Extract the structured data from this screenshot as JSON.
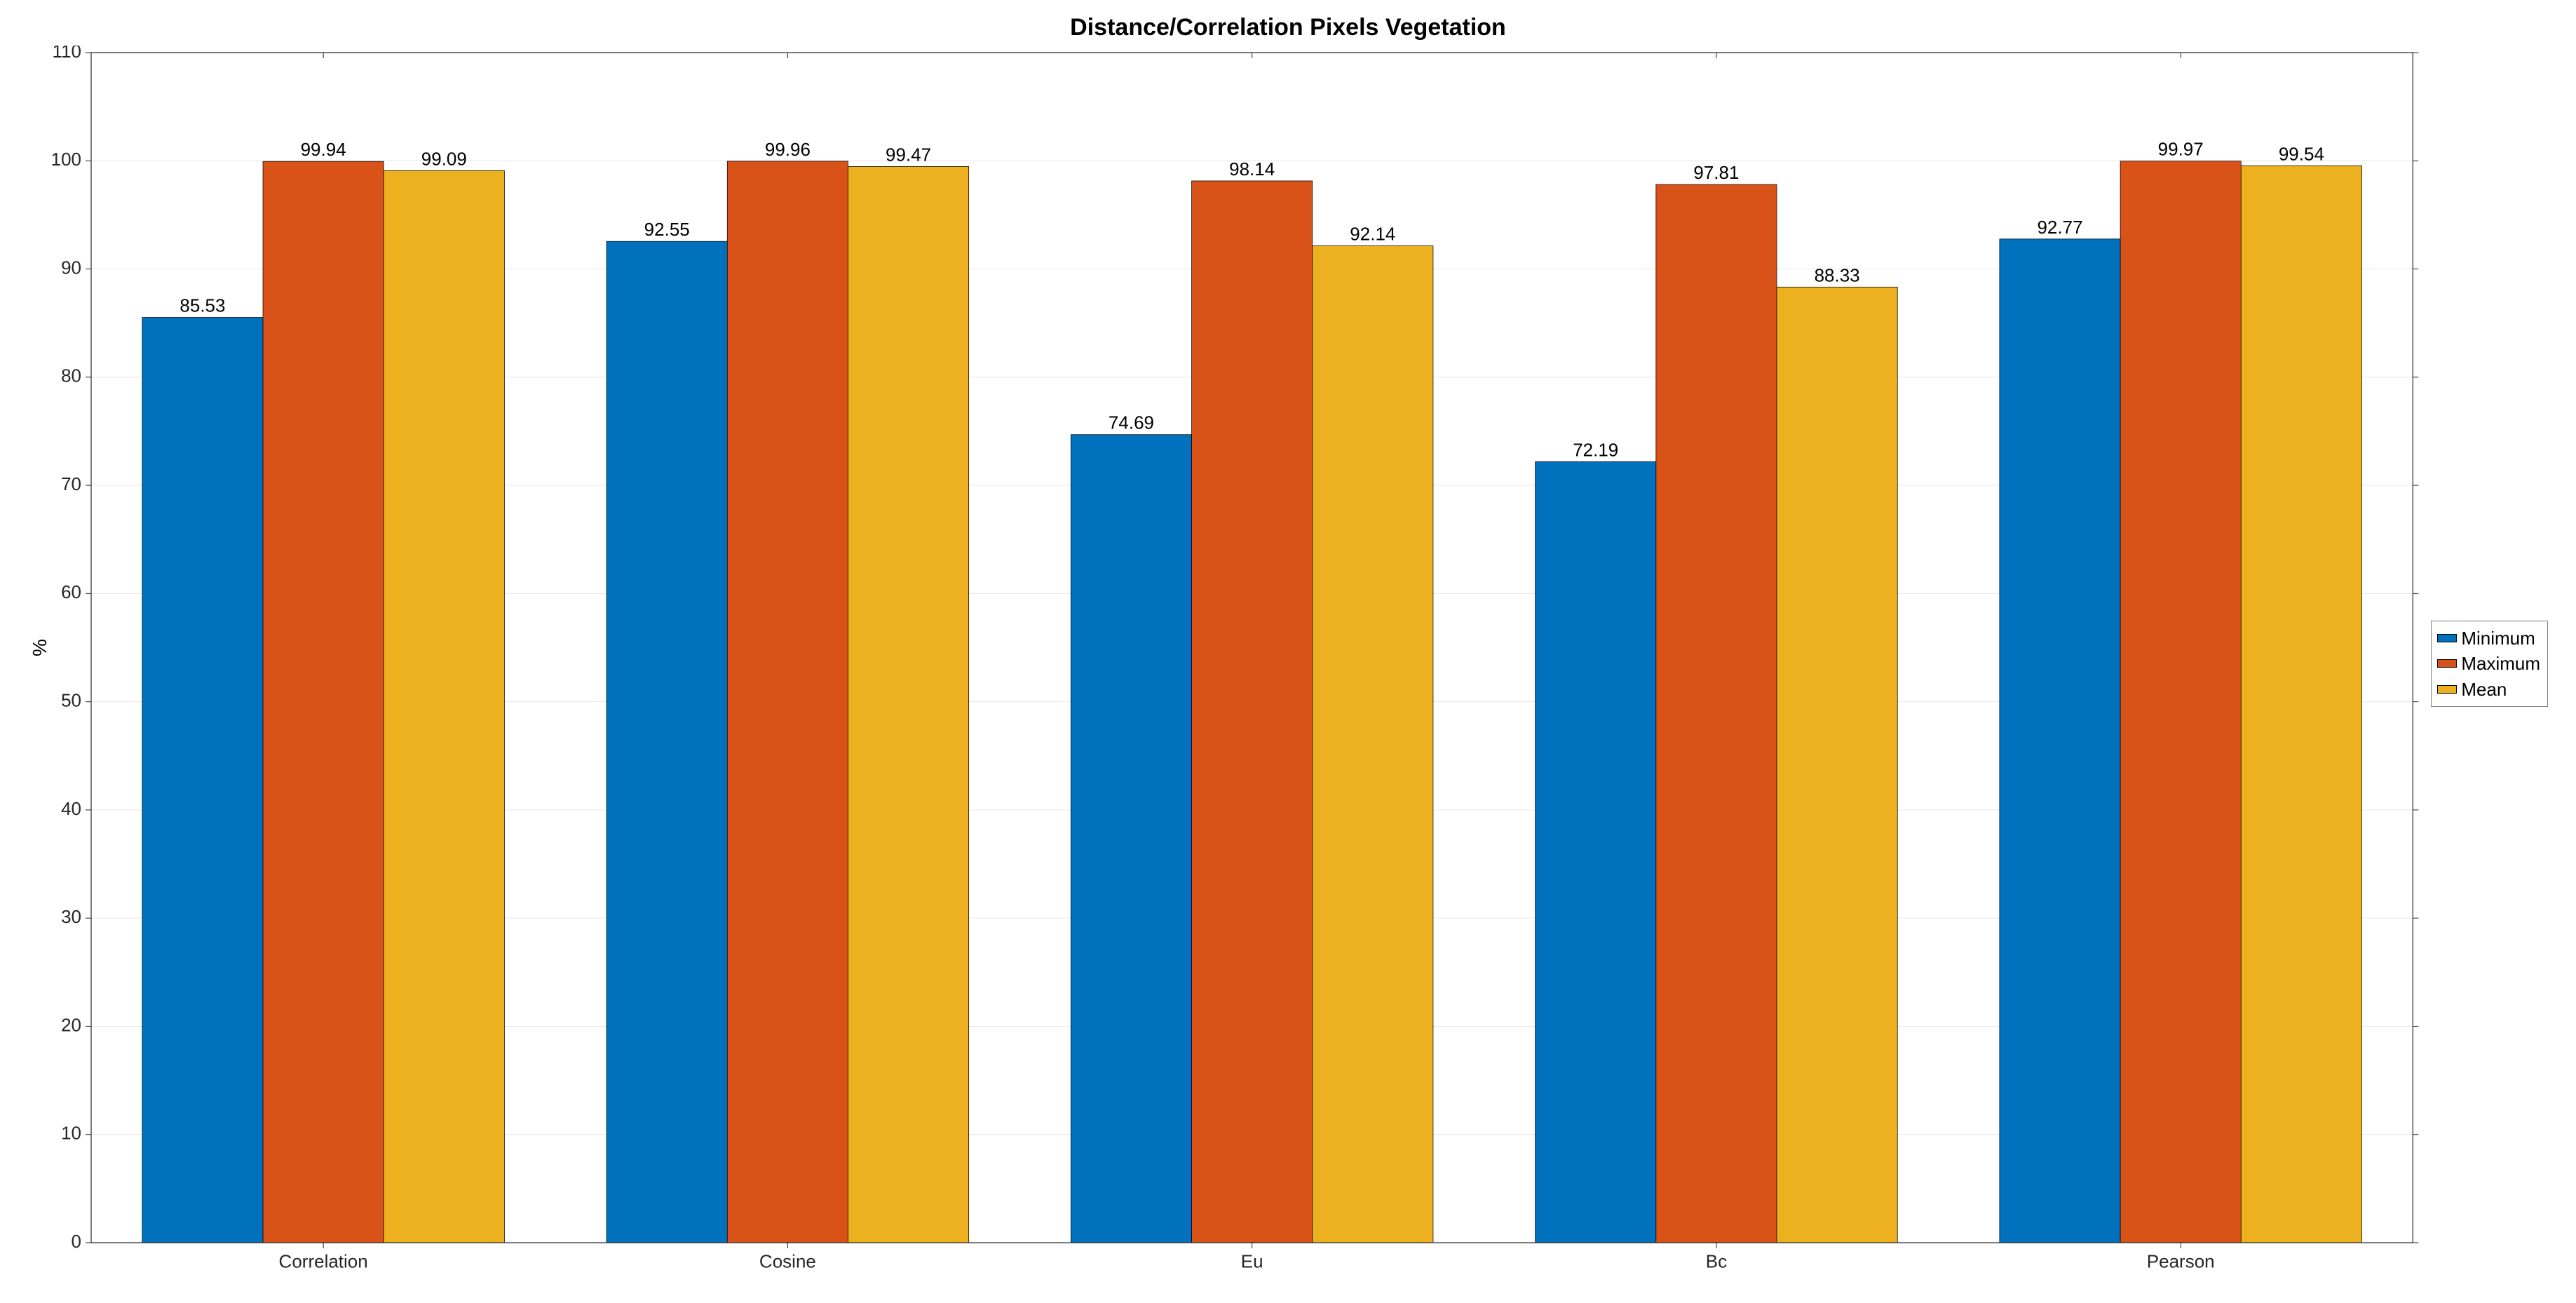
{
  "chart": {
    "type": "bar",
    "title": "Distance/Correlation Pixels Vegetation",
    "title_fontsize": 34,
    "title_fontweight": "bold",
    "ylabel": "%",
    "label_fontsize": 28,
    "tick_fontsize": 26,
    "barlabel_fontsize": 26,
    "legend_fontsize": 26,
    "categories": [
      "Correlation",
      "Cosine",
      "Eu",
      "Bc",
      "Pearson"
    ],
    "series": [
      {
        "name": "Minimum",
        "color": "#0072bd",
        "values": [
          85.53,
          92.55,
          74.69,
          72.19,
          92.77
        ]
      },
      {
        "name": "Maximum",
        "color": "#d95319",
        "values": [
          99.94,
          99.96,
          98.14,
          97.81,
          99.97
        ]
      },
      {
        "name": "Mean",
        "color": "#edb120",
        "values": [
          99.09,
          99.47,
          92.14,
          88.33,
          99.54
        ]
      }
    ],
    "ylim": [
      0,
      110
    ],
    "ytick_step": 10,
    "bar_width": 0.26,
    "background_color": "#ffffff",
    "grid_color": "#e6e6e6",
    "axis_color": "#262626",
    "box": true,
    "minor_ticks_top": true
  }
}
